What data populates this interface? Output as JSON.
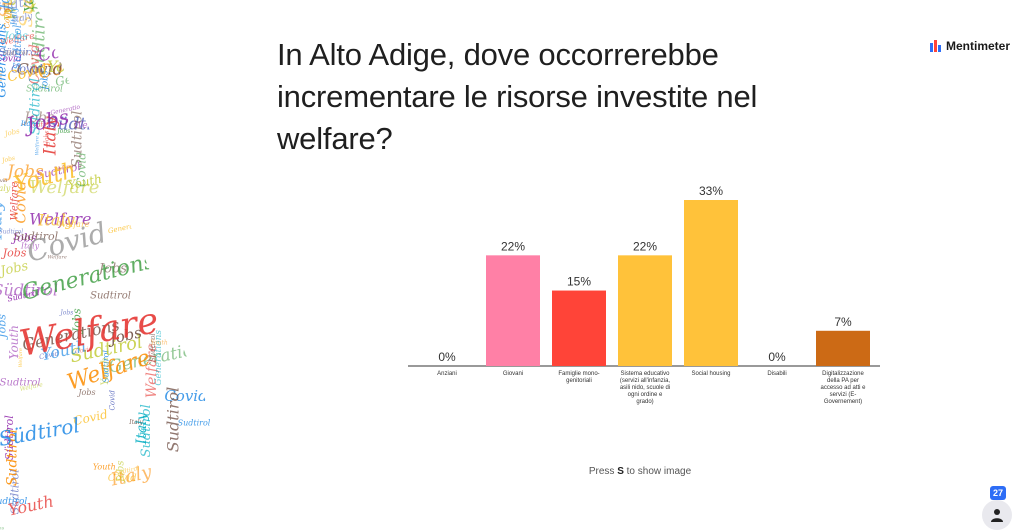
{
  "slide": {
    "title": "In Alto Adige, dove occorrerebbe incrementare le risorse investite nel welfare?",
    "hint_prefix": "Press ",
    "hint_key": "S",
    "hint_suffix": " to show image"
  },
  "brand": {
    "name": "Mentimeter",
    "icon": "mentimeter-logo-icon"
  },
  "participants": {
    "count": "27",
    "icon": "person-icon"
  },
  "wordcloud": {
    "words": [
      "Welfare",
      "Youth",
      "Jobs",
      "Südtirol",
      "Covid",
      "Generations",
      "Italy",
      "Sudtirol"
    ]
  },
  "colors": {
    "Anziani": "#9fa2e8",
    "Giovani": "#ff80a6",
    "Famiglie": "#ff4438",
    "Sistema": "#ffc23a",
    "Social": "#ffc23a",
    "Disabili": "#9fa2e8",
    "Digital": "#cc6a15"
  },
  "chart_data": {
    "type": "bar",
    "categories": [
      [
        "Anziani"
      ],
      [
        "Giovani"
      ],
      [
        "Famiglie mono-",
        "genitoriali"
      ],
      [
        "Sistema educativo",
        "(servizi all'infanzia,",
        "asili nido, scuole di",
        "ogni ordine e",
        "grado)"
      ],
      [
        "Social housing"
      ],
      [
        "Disabili"
      ],
      [
        "Digitalizzazione",
        "della PA per",
        "accesso ad atti e",
        "servizi (E-",
        "Governement)"
      ]
    ],
    "values": [
      0,
      22,
      15,
      22,
      33,
      0,
      7
    ],
    "labels": [
      "0%",
      "22%",
      "15%",
      "22%",
      "33%",
      "0%",
      "7%"
    ],
    "ylim": [
      0,
      33
    ]
  }
}
